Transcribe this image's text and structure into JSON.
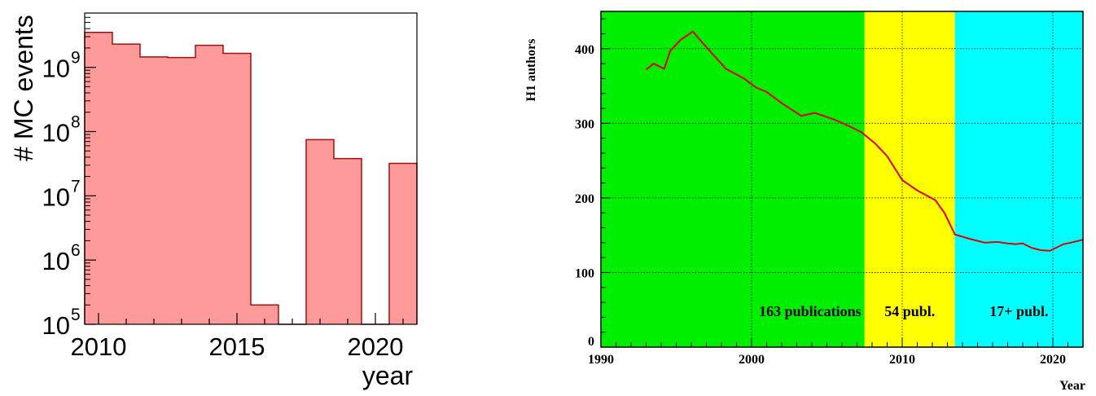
{
  "chart_data": [
    {
      "type": "bar",
      "xlabel": "year",
      "ylabel": "# MC events",
      "y_scale": "log",
      "ylim": [
        100000,
        7000000000
      ],
      "xlim": [
        2009.5,
        2021.5
      ],
      "x_ticks": [
        {
          "value": 2010,
          "label": "2010"
        },
        {
          "value": 2015,
          "label": "2015"
        },
        {
          "value": 2020,
          "label": "2020"
        }
      ],
      "y_ticks": [
        {
          "value": 100000,
          "base": "10",
          "exp": "5"
        },
        {
          "value": 1000000,
          "base": "10",
          "exp": "6"
        },
        {
          "value": 10000000,
          "base": "10",
          "exp": "7"
        },
        {
          "value": 100000000,
          "base": "10",
          "exp": "8"
        },
        {
          "value": 1000000000,
          "base": "10",
          "exp": "9"
        }
      ],
      "bin_edges": [
        2009.5,
        2010.5,
        2011.5,
        2012.5,
        2013.5,
        2014.5,
        2015.5,
        2016.5,
        2017.5,
        2018.5,
        2019.5,
        2020.5,
        2021.5
      ],
      "values": [
        3500000000,
        2300000000,
        1450000000,
        1420000000,
        2200000000,
        1650000000,
        200000,
        100000,
        75000000,
        38000000,
        100000,
        32000000
      ],
      "fill_color": "#ff9a9a",
      "line_color": "#a01010"
    },
    {
      "type": "line",
      "xlabel": "Year",
      "ylabel": "H1 authors",
      "xlim": [
        1990,
        2022
      ],
      "ylim": [
        0,
        450
      ],
      "x_ticks": [
        "1990",
        "2000",
        "2010",
        "2020"
      ],
      "y_ticks": [
        "0",
        "100",
        "200",
        "300",
        "400"
      ],
      "grid": true,
      "line_color": "#dd0000",
      "regions": [
        {
          "from": 1990,
          "to": 2007.5,
          "color": "#00ee00",
          "label": "163 publications"
        },
        {
          "from": 2007.5,
          "to": 2013.5,
          "color": "#ffff00",
          "label": "54 publ."
        },
        {
          "from": 2013.5,
          "to": 2022,
          "color": "#00ffff",
          "label": "17+ publ."
        }
      ],
      "x": [
        1993,
        1993.5,
        1994.2,
        1994.6,
        1995.3,
        1996.1,
        1997,
        1998.3,
        1999.5,
        2000.3,
        2001,
        2002,
        2003.3,
        2004.2,
        2005.5,
        2006.5,
        2007.3,
        2008.2,
        2009,
        2010,
        2011,
        2012.2,
        2012.8,
        2013.5,
        2014.5,
        2015.5,
        2016.3,
        2017,
        2017.5,
        2018,
        2018.6,
        2019.2,
        2019.8,
        2020.7,
        2021.2,
        2022
      ],
      "y": [
        372,
        380,
        373,
        397,
        412,
        423,
        402,
        373,
        360,
        348,
        342,
        327,
        310,
        314,
        305,
        296,
        288,
        273,
        256,
        224,
        210,
        197,
        180,
        151,
        145,
        140,
        141,
        139,
        138,
        139,
        133,
        130,
        129,
        138,
        140,
        144
      ]
    }
  ]
}
